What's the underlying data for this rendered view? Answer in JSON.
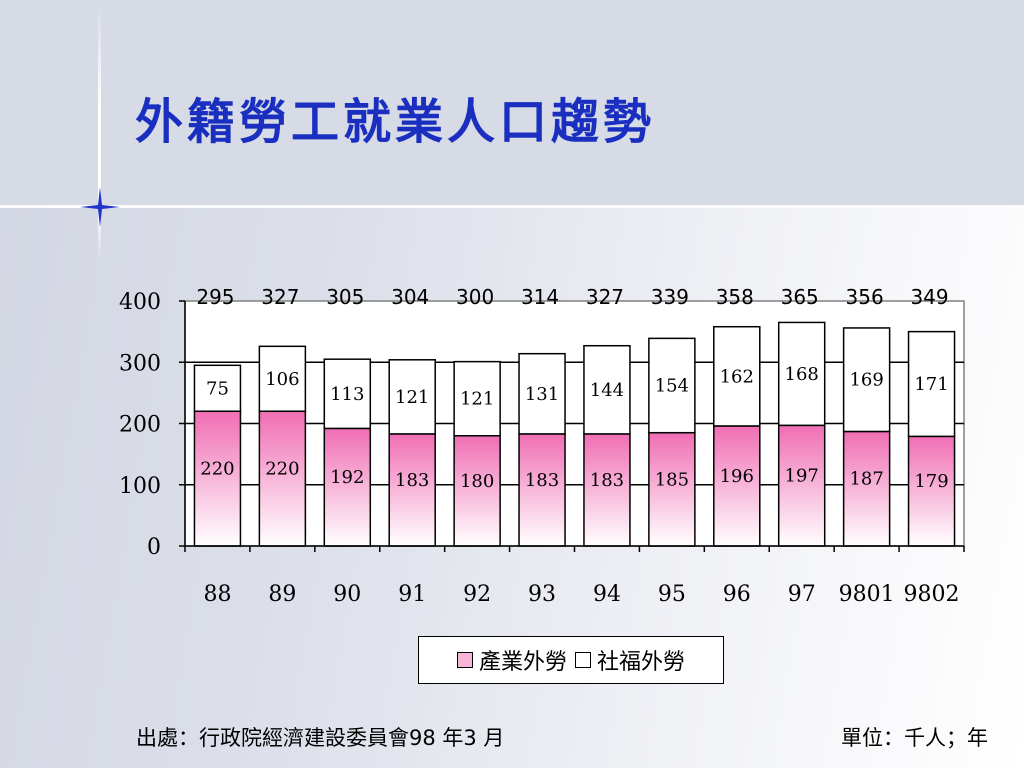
{
  "title": "外籍勞工就業人口趨勢",
  "source": "出處：行政院經濟建設委員會98 年3 月",
  "unit": "單位：千人；年",
  "colors": {
    "industrial_top": "#f06eb4",
    "industrial_bottom": "#ffffff",
    "welfare": "#ffffff",
    "title": "#1a2fc0"
  },
  "chart_data": {
    "type": "bar",
    "stacked": true,
    "categories": [
      "88",
      "89",
      "90",
      "91",
      "92",
      "93",
      "94",
      "95",
      "96",
      "97",
      "9801",
      "9802"
    ],
    "series": [
      {
        "name": "產業外勞",
        "values": [
          220,
          220,
          192,
          183,
          180,
          183,
          183,
          185,
          196,
          197,
          187,
          179
        ]
      },
      {
        "name": "社福外勞",
        "values": [
          75,
          106,
          113,
          121,
          121,
          131,
          144,
          154,
          162,
          168,
          169,
          171
        ]
      }
    ],
    "totals": [
      295,
      327,
      305,
      304,
      300,
      314,
      327,
      339,
      358,
      365,
      356,
      349
    ],
    "yticks": [
      "0",
      "100",
      "200",
      "300",
      "400"
    ],
    "ylim": [
      0,
      400
    ],
    "grid": true,
    "legend_position": "bottom"
  }
}
